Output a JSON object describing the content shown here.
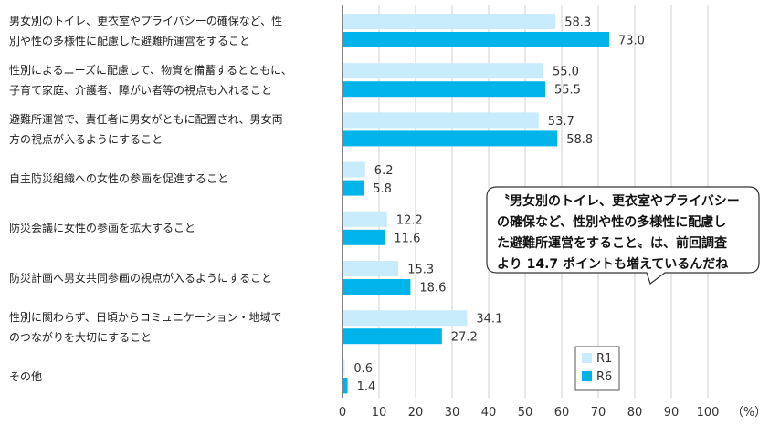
{
  "chart_data": {
    "type": "bar",
    "orientation": "horizontal",
    "categories": [
      [
        "男女別のトイレ、更衣室やプライバシーの確保など、性",
        "別や性の多様性に配慮した避難所運営をすること"
      ],
      [
        "性別によるニーズに配慮して、物資を備蓄するとともに、",
        "子育て家庭、介護者、障がい者等の視点も入れること"
      ],
      [
        "避難所運営で、責任者に男女がともに配置され、男女両",
        "方の視点が入るようにすること"
      ],
      [
        "自主防災組織への女性の参画を促進すること"
      ],
      [
        "防災会議に女性の参画を拡大すること"
      ],
      [
        "防災計画へ男女共同参画の視点が入るようにすること"
      ],
      [
        "性別に関わらず、日頃からコミュニケーション・地域で",
        "のつながりを大切にすること"
      ],
      [
        "その他"
      ]
    ],
    "series": [
      {
        "name": "R1",
        "color": "#c8ecfb",
        "values": [
          58.3,
          55.0,
          53.7,
          6.2,
          12.2,
          15.3,
          34.1,
          0.6
        ]
      },
      {
        "name": "R6",
        "color": "#00b4ea",
        "values": [
          73.0,
          55.5,
          58.8,
          5.8,
          11.6,
          18.6,
          27.2,
          1.4
        ]
      }
    ],
    "value_labels": [
      [
        "58.3",
        "73.0"
      ],
      [
        "55.0",
        "55.5"
      ],
      [
        "53.7",
        "58.8"
      ],
      [
        "6.2",
        "5.8"
      ],
      [
        "12.2",
        "11.6"
      ],
      [
        "15.3",
        "18.6"
      ],
      [
        "34.1",
        "27.2"
      ],
      [
        "0.6",
        "1.4"
      ]
    ],
    "xlim": [
      0,
      100
    ],
    "xticks": [
      0,
      10,
      20,
      30,
      40,
      50,
      60,
      70,
      80,
      90,
      100
    ],
    "unit": "（%）",
    "legend_position": "bottom-right",
    "grid": true
  },
  "callout": {
    "lines": [
      "〝男女別のトイレ、更衣室やプライバシー",
      "の確保など、性別や性の多様性に配慮し",
      "た避難所運営をすること〟は、前回調査",
      "より 14.7 ポイントも増えているんだね"
    ]
  }
}
